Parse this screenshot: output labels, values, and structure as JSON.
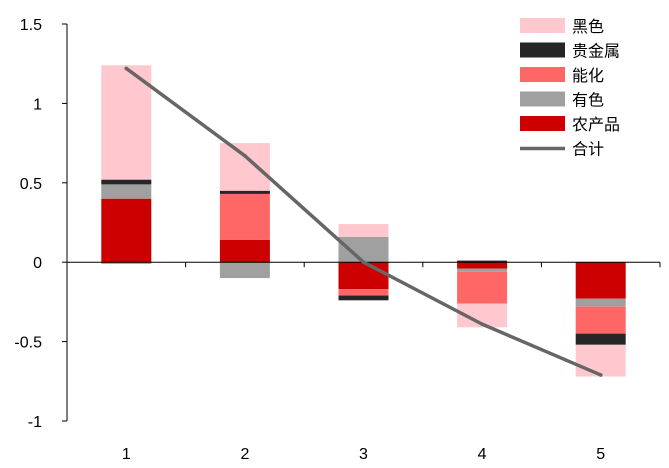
{
  "chart_data": {
    "type": "bar",
    "stacked": true,
    "categories": [
      "1",
      "2",
      "3",
      "4",
      "5"
    ],
    "series": [
      {
        "name": "农产品",
        "type": "bar",
        "color": "#CC0000",
        "values": [
          0.4,
          0.14,
          -0.17,
          -0.04,
          -0.23
        ]
      },
      {
        "name": "有色",
        "type": "bar",
        "color": "#A0A0A0",
        "values": [
          0.09,
          -0.1,
          0.16,
          -0.02,
          -0.05
        ]
      },
      {
        "name": "能化",
        "type": "bar",
        "color": "#FF6666",
        "values": [
          -0.01,
          0.29,
          -0.04,
          -0.2,
          -0.17
        ]
      },
      {
        "name": "贵金属",
        "type": "bar",
        "color": "#262626",
        "values": [
          0.03,
          0.02,
          -0.03,
          0.01,
          -0.07
        ]
      },
      {
        "name": "黑色",
        "type": "bar",
        "color": "#FFC7CE",
        "values": [
          0.72,
          0.3,
          0.08,
          -0.15,
          -0.2
        ]
      },
      {
        "name": "合计",
        "type": "line",
        "color": "#666666",
        "values": [
          1.22,
          0.67,
          0.0,
          -0.39,
          -0.71
        ]
      }
    ],
    "legend_order": [
      "黑色",
      "贵金属",
      "能化",
      "有色",
      "农产品",
      "合计"
    ],
    "y_ticks": [
      "1.5",
      "1",
      "0.5",
      "0",
      "-0.5",
      "-1"
    ],
    "ylim": [
      -1,
      1.5
    ],
    "title": "",
    "xlabel": "",
    "ylabel": "",
    "grid": false,
    "legend_position": "top-right"
  }
}
